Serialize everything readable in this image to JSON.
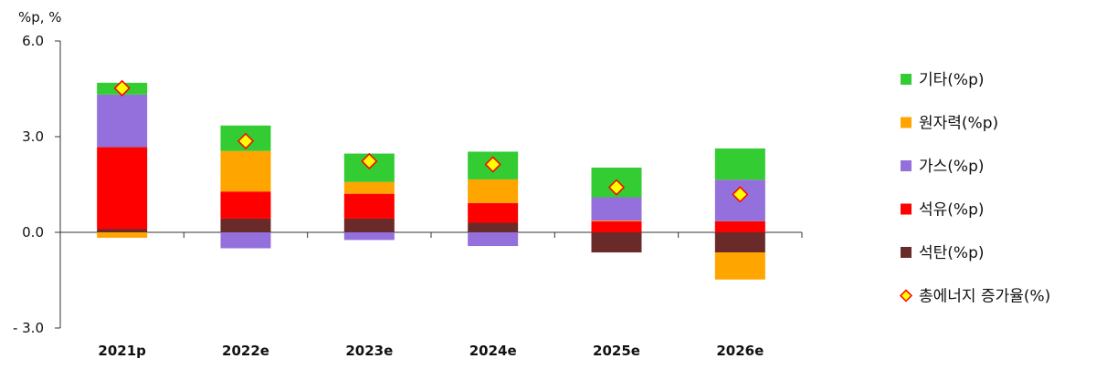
{
  "chart_data": {
    "type": "bar",
    "stacked": true,
    "y_unit_label": "%p, %",
    "categories": [
      "2021p",
      "2022e",
      "2023e",
      "2024e",
      "2025e",
      "2026e"
    ],
    "ylim": [
      -3.0,
      6.0
    ],
    "yticks": [
      "6.0",
      "3.0",
      "0.0",
      "- 3.0"
    ],
    "ytick_values": [
      6.0,
      3.0,
      0.0,
      -3.0
    ],
    "series": [
      {
        "name": "석탄(%p)",
        "color": "#6b2a2a",
        "values": [
          0.1,
          0.43,
          0.43,
          0.3,
          -0.63,
          -0.63
        ]
      },
      {
        "name": "석유(%p)",
        "color": "#ff0000",
        "values": [
          2.57,
          0.85,
          0.78,
          0.62,
          0.35,
          0.35
        ]
      },
      {
        "name": "원자력(%p)",
        "color": "#ffa500",
        "values": [
          -0.17,
          1.27,
          0.37,
          0.74,
          0.02,
          -0.85
        ]
      },
      {
        "name": "가스(%p)",
        "color": "#9370db",
        "values": [
          1.65,
          -0.5,
          -0.24,
          -0.43,
          0.73,
          1.3
        ]
      },
      {
        "name": "기타(%p)",
        "color": "#33cc33",
        "values": [
          0.37,
          0.8,
          0.89,
          0.87,
          0.93,
          0.98
        ]
      }
    ],
    "total_growth": {
      "name": "총에너지 증가율(%)",
      "marker": "diamond",
      "fill": "#ffff00",
      "stroke": "#ff0000",
      "values": [
        4.52,
        2.86,
        2.23,
        2.13,
        1.41,
        1.19
      ]
    },
    "legend_order": [
      "기타(%p)",
      "원자력(%p)",
      "가스(%p)",
      "석유(%p)",
      "석탄(%p)",
      "총에너지 증가율(%)"
    ],
    "legend_position": "right",
    "grid": false
  }
}
